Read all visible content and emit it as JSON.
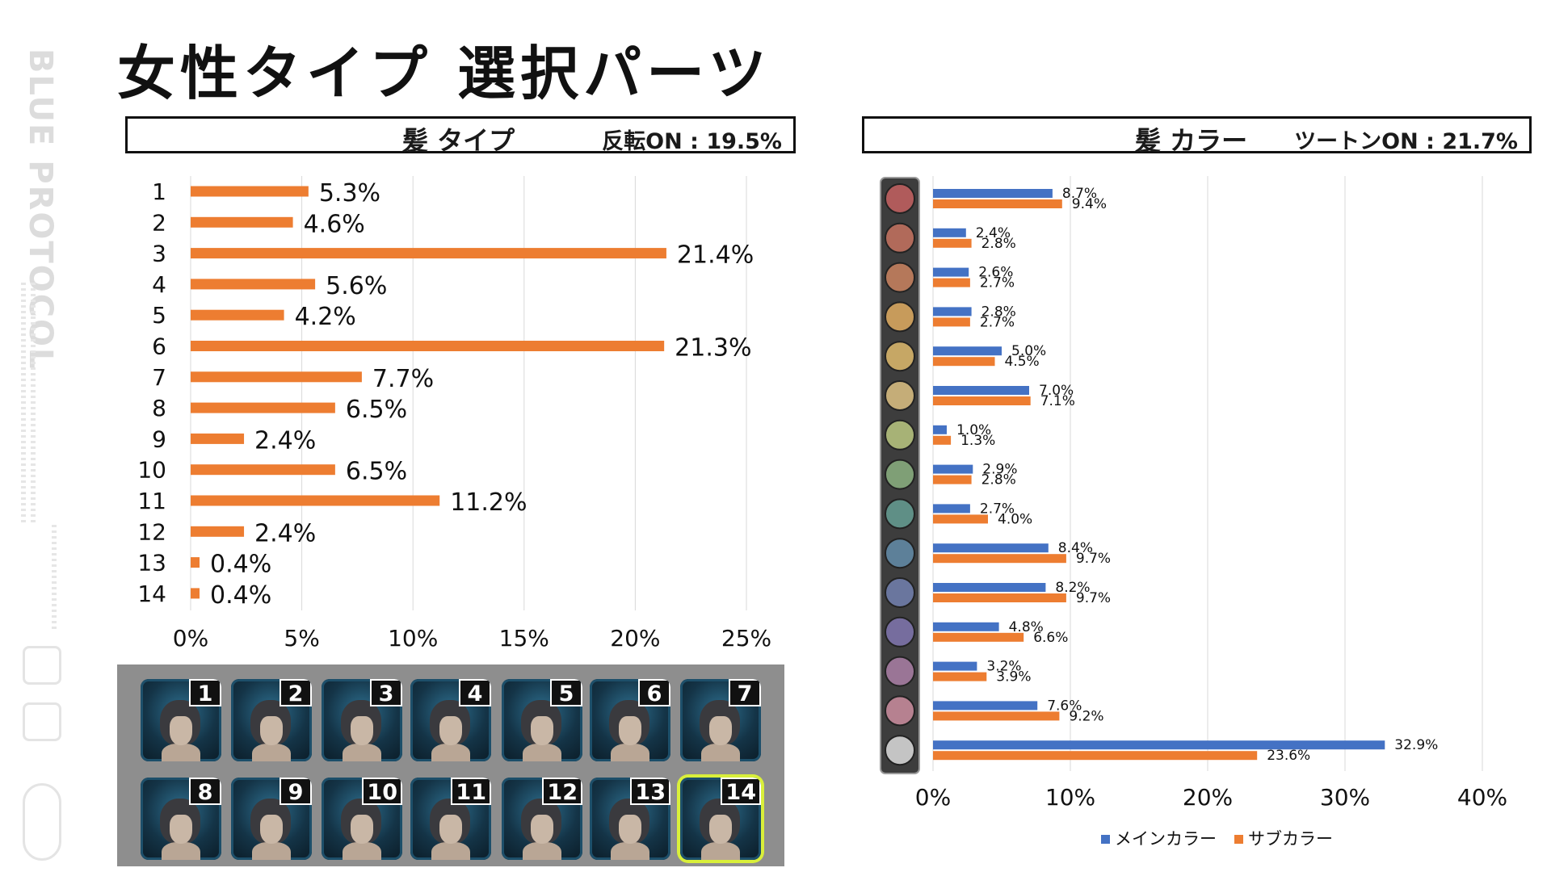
{
  "page": {
    "title": "女性タイプ 選択パーツ"
  },
  "brand": {
    "logo": "BLUE PROTOCOL"
  },
  "left_panel": {
    "title": "髪 タイプ",
    "note": "反転ON : 19.5%"
  },
  "right_panel": {
    "title": "髪 カラー",
    "note": "ツートンON : 21.7%"
  },
  "chart_data": [
    {
      "type": "bar",
      "orientation": "horizontal",
      "title": "髪 タイプ",
      "categories": [
        "1",
        "2",
        "3",
        "4",
        "5",
        "6",
        "7",
        "8",
        "9",
        "10",
        "11",
        "12",
        "13",
        "14"
      ],
      "values": [
        5.3,
        4.6,
        21.4,
        5.6,
        4.2,
        21.3,
        7.7,
        6.5,
        2.4,
        6.5,
        11.2,
        2.4,
        0.4,
        0.4
      ],
      "labels": [
        "5.3%",
        "4.6%",
        "21.4%",
        "5.6%",
        "4.2%",
        "21.3%",
        "7.7%",
        "6.5%",
        "2.4%",
        "6.5%",
        "11.2%",
        "2.4%",
        "0.4%",
        "0.4%"
      ],
      "xlim": [
        0,
        25
      ],
      "xticks": [
        "0%",
        "5%",
        "10%",
        "15%",
        "20%",
        "25%"
      ],
      "grid": true,
      "colors": {
        "bar": "#ed7d31"
      }
    },
    {
      "type": "bar",
      "orientation": "horizontal",
      "title": "髪 カラー",
      "categories": [
        "#b05b5b",
        "#b16a5a",
        "#b5785a",
        "#c79b5b",
        "#c6a765",
        "#c5ad78",
        "#a7b276",
        "#7f9f76",
        "#5f8f86",
        "#5d8099",
        "#6a769e",
        "#766d9e",
        "#9a7596",
        "#b68190",
        "#c4c4c4"
      ],
      "series": [
        {
          "name": "メインカラー",
          "color": "#4472c4",
          "values": [
            8.7,
            2.4,
            2.6,
            2.8,
            5.0,
            7.0,
            1.0,
            2.9,
            2.7,
            8.4,
            8.2,
            4.8,
            3.2,
            7.6,
            32.9
          ],
          "labels": [
            "8.7%",
            "2.4%",
            "2.6%",
            "2.8%",
            "5.0%",
            "7.0%",
            "1.0%",
            "2.9%",
            "2.7%",
            "8.4%",
            "8.2%",
            "4.8%",
            "3.2%",
            "7.6%",
            "32.9%"
          ]
        },
        {
          "name": "サブカラー",
          "color": "#ed7d31",
          "values": [
            9.4,
            2.8,
            2.7,
            2.7,
            4.5,
            7.1,
            1.3,
            2.8,
            4.0,
            9.7,
            9.7,
            6.6,
            3.9,
            9.2,
            23.6
          ],
          "labels": [
            "9.4%",
            "2.8%",
            "2.7%",
            "2.7%",
            "4.5%",
            "7.1%",
            "1.3%",
            "2.8%",
            "4.0%",
            "9.7%",
            "9.7%",
            "6.6%",
            "3.9%",
            "9.2%",
            "23.6%"
          ]
        }
      ],
      "xlim": [
        0,
        40
      ],
      "xticks": [
        "0%",
        "10%",
        "20%",
        "30%",
        "40%"
      ],
      "grid": true,
      "legend": "bottom"
    }
  ],
  "thumbnails": {
    "labels": [
      "1",
      "2",
      "3",
      "4",
      "5",
      "6",
      "7",
      "8",
      "9",
      "10",
      "11",
      "12",
      "13",
      "14"
    ],
    "selected": "14"
  }
}
